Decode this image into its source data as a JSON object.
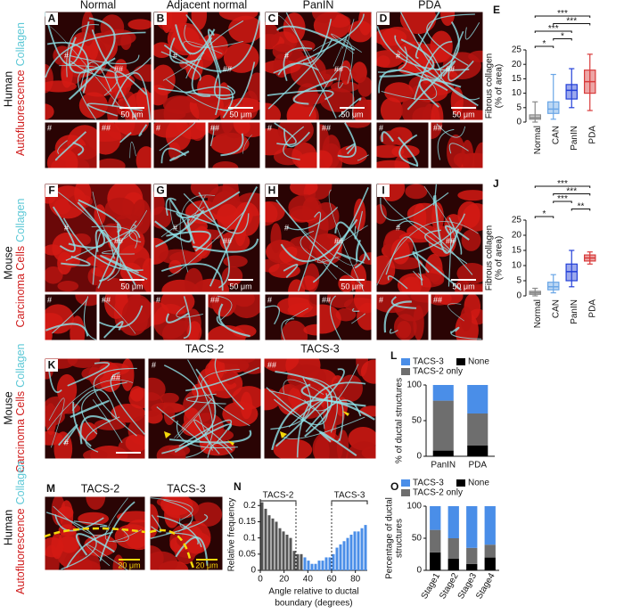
{
  "image_grid": {
    "columns": [
      "Normal",
      "Adjacent normal",
      "PanIN",
      "PDA"
    ],
    "rows": [
      {
        "species": "Human",
        "channel": "Autofluorescence",
        "stain": "Collagen",
        "panels": [
          {
            "letter": "A",
            "marks": [
              "#",
              "##"
            ],
            "scale": "50 μm",
            "inset_marks": [
              "#",
              "##"
            ]
          },
          {
            "letter": "B",
            "marks": [
              "#",
              "##"
            ],
            "scale": "50 μm",
            "inset_marks": [
              "#",
              "##"
            ]
          },
          {
            "letter": "C",
            "marks": [
              "#",
              "##"
            ],
            "scale": "50 μm",
            "inset_marks": [
              "#",
              "##"
            ]
          },
          {
            "letter": "D",
            "marks": [
              "#",
              "##"
            ],
            "scale": "50 μm",
            "inset_marks": [
              "#",
              "##"
            ]
          }
        ]
      },
      {
        "species": "Mouse",
        "channel": "Carcinoma Cells",
        "stain": "Collagen",
        "panels": [
          {
            "letter": "F",
            "marks": [
              "#",
              "##"
            ],
            "scale": "50 μm",
            "inset_marks": [
              "#",
              "##"
            ]
          },
          {
            "letter": "G",
            "marks": [
              "#",
              "##"
            ],
            "scale": "50 μm",
            "inset_marks": [
              "#",
              "##"
            ]
          },
          {
            "letter": "H",
            "marks": [
              "#",
              "##"
            ],
            "scale": "50 μm",
            "inset_marks": [
              "#",
              "##"
            ]
          },
          {
            "letter": "I",
            "marks": [
              "#",
              "##"
            ],
            "scale": "50 μm",
            "inset_marks": [
              "#",
              "##"
            ]
          }
        ]
      }
    ]
  },
  "tacs_mouse": {
    "letter": "K",
    "species": "Mouse",
    "channel": "Carcinoma Cells",
    "stain": "Collagen",
    "panels": [
      {
        "marks": [
          "##",
          "#"
        ]
      },
      {
        "title": "TACS-2",
        "marks": [
          "#"
        ]
      },
      {
        "title": "TACS-3",
        "marks": [
          "##"
        ]
      }
    ]
  },
  "tacs_human": {
    "letter": "M",
    "species": "Human",
    "channel": "Autofluorescence",
    "stain": "Collagen",
    "panels": [
      {
        "title": "TACS-2",
        "scale": "20 μm"
      },
      {
        "title": "TACS-3",
        "scale": "20 μm"
      }
    ]
  },
  "chart_data": [
    {
      "type": "box",
      "letter": "E",
      "ylabel": [
        "Fibrous collagen",
        "(% of area)"
      ],
      "categories": [
        "Normal",
        "CAN",
        "PanIN",
        "PDA"
      ],
      "colors": [
        "#8a8a8a",
        "#6aa6e6",
        "#2340d8",
        "#d83a3a"
      ],
      "min": [
        0,
        1,
        5,
        4
      ],
      "q1": [
        1,
        3,
        8,
        10
      ],
      "median": [
        1.5,
        4.5,
        11,
        14
      ],
      "q3": [
        2.5,
        7,
        13,
        18
      ],
      "max": [
        7,
        16.5,
        18.5,
        23.5
      ],
      "ylim": [
        0,
        25
      ],
      "yticks": [
        0,
        5,
        10,
        15,
        20,
        25
      ],
      "significance": [
        {
          "label": "*",
          "pair": [
            0,
            1
          ]
        },
        {
          "label": "*",
          "pair": [
            1,
            2
          ]
        },
        {
          "label": "***",
          "pair": [
            0,
            2
          ]
        },
        {
          "label": "***",
          "pair": [
            1,
            3
          ]
        },
        {
          "label": "***",
          "pair": [
            0,
            3
          ]
        }
      ]
    },
    {
      "type": "box",
      "letter": "J",
      "ylabel": [
        "Fibrous collagen",
        "(% of area)"
      ],
      "categories": [
        "Normal",
        "CAN",
        "PanIN",
        "PDA"
      ],
      "colors": [
        "#8a8a8a",
        "#6aa6e6",
        "#2340d8",
        "#d83a3a"
      ],
      "min": [
        0,
        1,
        3,
        10.5
      ],
      "q1": [
        0.5,
        2,
        5,
        11.5
      ],
      "median": [
        1,
        3,
        8,
        12.5
      ],
      "q3": [
        1.5,
        4.5,
        10.5,
        13.5
      ],
      "max": [
        2.5,
        7,
        15,
        14.5
      ],
      "ylim": [
        0,
        25
      ],
      "yticks": [
        0,
        5,
        10,
        15,
        20,
        25
      ],
      "significance": [
        {
          "label": "*",
          "pair": [
            0,
            1
          ]
        },
        {
          "label": "**",
          "pair": [
            2,
            3
          ]
        },
        {
          "label": "***",
          "pair": [
            1,
            2
          ]
        },
        {
          "label": "***",
          "pair": [
            1,
            3
          ]
        },
        {
          "label": "***",
          "pair": [
            0,
            3
          ]
        }
      ]
    },
    {
      "type": "stacked",
      "letter": "L",
      "ylabel": [
        "% of ductal structures"
      ],
      "categories": [
        "PanIN",
        "PDA"
      ],
      "rotated_xticklabels": false,
      "series": [
        {
          "name": "None",
          "color": "#000000",
          "values": [
            8,
            15
          ]
        },
        {
          "name": "TACS-2 only",
          "color": "#6e6e6e",
          "values": [
            70,
            45
          ]
        },
        {
          "name": "TACS-3",
          "color": "#4a8ee8",
          "values": [
            22,
            40
          ]
        }
      ],
      "ylim": [
        0,
        100
      ],
      "yticks": [
        0,
        50,
        100
      ]
    },
    {
      "type": "histogram",
      "letter": "N",
      "ylabel": [
        "Relative frequency"
      ],
      "xlabel": [
        "Angle relative to ductal",
        "boundary (degrees)"
      ],
      "bins": [
        0,
        3,
        6,
        9,
        12,
        15,
        18,
        21,
        24,
        27,
        30,
        33,
        36,
        39,
        42,
        45,
        48,
        51,
        54,
        57,
        60,
        63,
        66,
        69,
        72,
        75,
        78,
        81,
        84,
        87,
        90
      ],
      "counts": [
        0.21,
        0.19,
        0.17,
        0.16,
        0.15,
        0.13,
        0.12,
        0.11,
        0.1,
        0.06,
        0.05,
        0.05,
        0.04,
        0.03,
        0.02,
        0.02,
        0.03,
        0.03,
        0.04,
        0.04,
        0.05,
        0.07,
        0.08,
        0.09,
        0.1,
        0.11,
        0.12,
        0.12,
        0.13,
        0.14
      ],
      "colors": [
        "#555555",
        "#555555",
        "#555555",
        "#555555",
        "#555555",
        "#555555",
        "#555555",
        "#555555",
        "#555555",
        "#555555",
        "#555555",
        "#555555",
        "#4a8ee8",
        "#4a8ee8",
        "#4a8ee8",
        "#4a8ee8",
        "#4a8ee8",
        "#4a8ee8",
        "#4a8ee8",
        "#4a8ee8",
        "#4a8ee8",
        "#4a8ee8",
        "#4a8ee8",
        "#4a8ee8",
        "#4a8ee8",
        "#4a8ee8",
        "#4a8ee8",
        "#4a8ee8",
        "#4a8ee8",
        "#4a8ee8"
      ],
      "xlim": [
        0,
        90
      ],
      "xticks": [
        0,
        20,
        40,
        60,
        80
      ],
      "ylim": [
        0,
        0.22
      ],
      "yticks": [
        0,
        0.05,
        0.1,
        0.15,
        0.2
      ],
      "regions": [
        {
          "label": "TACS-2",
          "range": [
            0,
            30
          ]
        },
        {
          "label": "TACS-3",
          "range": [
            60,
            90
          ]
        }
      ]
    },
    {
      "type": "stacked",
      "letter": "O",
      "ylabel": [
        "Percentage of ductal",
        "structures"
      ],
      "categories": [
        "Stage1",
        "Stage2",
        "Stage3",
        "Stage4"
      ],
      "rotated_xticklabels": true,
      "series": [
        {
          "name": "None",
          "color": "#000000",
          "values": [
            28,
            18,
            10,
            20
          ]
        },
        {
          "name": "TACS-2 only",
          "color": "#6e6e6e",
          "values": [
            35,
            32,
            25,
            20
          ]
        },
        {
          "name": "TACS-3",
          "color": "#4a8ee8",
          "values": [
            37,
            50,
            65,
            60
          ]
        }
      ],
      "ylim": [
        0,
        100
      ],
      "yticks": [
        0,
        50,
        100
      ]
    }
  ]
}
